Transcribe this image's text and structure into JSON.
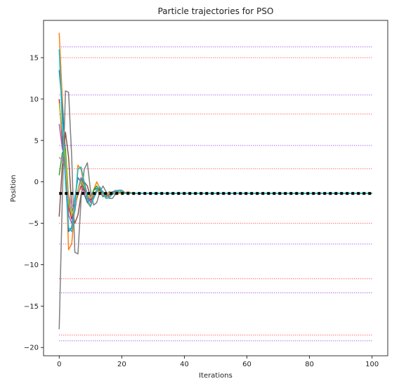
{
  "chart_data": {
    "type": "line",
    "title": "Particle trajectories for PSO",
    "xlabel": "Iterations",
    "ylabel": "Position",
    "xlim": [
      -5,
      105
    ],
    "ylim": [
      -21,
      19.5
    ],
    "xticks": [
      0,
      20,
      40,
      60,
      80,
      100
    ],
    "yticks": [
      -20,
      -15,
      -10,
      -5,
      0,
      5,
      10,
      15
    ],
    "grid": false,
    "horizontal_lines": [
      {
        "y": 16.3,
        "color": "#8b2be2"
      },
      {
        "y": 15.0,
        "color": "#ff3030"
      },
      {
        "y": 10.5,
        "color": "#8b2be2"
      },
      {
        "y": 8.2,
        "color": "#ff3030"
      },
      {
        "y": 4.4,
        "color": "#8b2be2"
      },
      {
        "y": 1.6,
        "color": "#ff3030"
      },
      {
        "y": -5.0,
        "color": "#ff3030"
      },
      {
        "y": -7.5,
        "color": "#8b2be2"
      },
      {
        "y": -11.7,
        "color": "#ff3030"
      },
      {
        "y": -13.4,
        "color": "#8b2be2"
      },
      {
        "y": -18.5,
        "color": "#ff3030"
      },
      {
        "y": -19.2,
        "color": "#8b2be2"
      }
    ],
    "reference_line": {
      "y": -1.4,
      "color": "#000000",
      "style": "dotted"
    },
    "series": [
      {
        "color": "#ff7f0e",
        "values": [
          [
            0,
            18.0
          ],
          [
            1,
            10.0
          ],
          [
            2,
            3.0
          ],
          [
            3,
            -8.2
          ],
          [
            4,
            -7.5
          ],
          [
            5,
            -3.0
          ],
          [
            6,
            2.0
          ],
          [
            7,
            1.5
          ],
          [
            8,
            -0.5
          ],
          [
            9,
            -2.5
          ],
          [
            10,
            -3.0
          ],
          [
            11,
            -1.0
          ],
          [
            12,
            0.0
          ],
          [
            13,
            -0.8
          ],
          [
            14,
            -1.5
          ],
          [
            15,
            -2.0
          ],
          [
            16,
            -1.8
          ],
          [
            17,
            -1.4
          ],
          [
            18,
            -1.0
          ],
          [
            19,
            -1.2
          ],
          [
            20,
            -1.5
          ],
          [
            21,
            -1.3
          ],
          [
            22,
            -1.2
          ],
          [
            24,
            -1.4
          ],
          [
            27,
            -1.4
          ],
          [
            100,
            -1.4
          ]
        ]
      },
      {
        "color": "#1f77b4",
        "values": [
          [
            0,
            13.5
          ],
          [
            1,
            9.0
          ],
          [
            2,
            3.5
          ],
          [
            3,
            -6.0
          ],
          [
            4,
            -5.5
          ],
          [
            5,
            -2.0
          ],
          [
            6,
            0.5
          ],
          [
            7,
            0.0
          ],
          [
            8,
            -1.5
          ],
          [
            9,
            -2.5
          ],
          [
            10,
            -2.0
          ],
          [
            11,
            -1.0
          ],
          [
            12,
            -0.8
          ],
          [
            13,
            -1.0
          ],
          [
            14,
            -1.5
          ],
          [
            15,
            -1.8
          ],
          [
            16,
            -1.5
          ],
          [
            17,
            -1.2
          ],
          [
            18,
            -1.1
          ],
          [
            19,
            -1.3
          ],
          [
            20,
            -1.4
          ],
          [
            22,
            -1.4
          ],
          [
            100,
            -1.4
          ]
        ]
      },
      {
        "color": "#2ca02c",
        "values": [
          [
            0,
            0.8
          ],
          [
            1,
            3.5
          ],
          [
            2,
            4.0
          ],
          [
            3,
            -2.0
          ],
          [
            4,
            -4.0
          ],
          [
            5,
            -3.5
          ],
          [
            6,
            -1.0
          ],
          [
            7,
            0.5
          ],
          [
            8,
            -0.8
          ],
          [
            9,
            -2.0
          ],
          [
            10,
            -2.2
          ],
          [
            11,
            -1.0
          ],
          [
            12,
            -0.5
          ],
          [
            13,
            -1.2
          ],
          [
            14,
            -1.8
          ],
          [
            15,
            -1.6
          ],
          [
            16,
            -1.2
          ],
          [
            17,
            -1.3
          ],
          [
            18,
            -1.5
          ],
          [
            19,
            -1.3
          ],
          [
            20,
            -1.2
          ],
          [
            22,
            -1.4
          ],
          [
            100,
            -1.4
          ]
        ]
      },
      {
        "color": "#d62728",
        "values": [
          [
            0,
            10.0
          ],
          [
            1,
            5.0
          ],
          [
            2,
            2.0
          ],
          [
            3,
            -3.0
          ],
          [
            4,
            -4.5
          ],
          [
            5,
            -3.0
          ],
          [
            6,
            -1.5
          ],
          [
            7,
            -0.5
          ],
          [
            8,
            -1.0
          ],
          [
            9,
            -1.8
          ],
          [
            10,
            -2.2
          ],
          [
            11,
            -1.5
          ],
          [
            12,
            -1.0
          ],
          [
            13,
            -1.2
          ],
          [
            14,
            -1.6
          ],
          [
            15,
            -1.5
          ],
          [
            16,
            -1.3
          ],
          [
            17,
            -1.4
          ],
          [
            18,
            -1.5
          ],
          [
            20,
            -1.3
          ],
          [
            22,
            -1.4
          ],
          [
            100,
            -1.4
          ]
        ]
      },
      {
        "color": "#9467bd",
        "values": [
          [
            0,
            7.0
          ],
          [
            1,
            4.0
          ],
          [
            2,
            3.0
          ],
          [
            3,
            -4.0
          ],
          [
            4,
            -5.0
          ],
          [
            5,
            -3.5
          ],
          [
            6,
            -1.0
          ],
          [
            7,
            0.5
          ],
          [
            8,
            0.0
          ],
          [
            9,
            -1.5
          ],
          [
            10,
            -2.5
          ],
          [
            11,
            -1.8
          ],
          [
            12,
            -1.0
          ],
          [
            13,
            -1.2
          ],
          [
            14,
            -1.7
          ],
          [
            15,
            -1.8
          ],
          [
            16,
            -1.5
          ],
          [
            17,
            -1.2
          ],
          [
            18,
            -1.2
          ],
          [
            20,
            -1.4
          ],
          [
            22,
            -1.4
          ],
          [
            100,
            -1.4
          ]
        ]
      },
      {
        "color": "#8c564b",
        "values": [
          [
            0,
            -4.2
          ],
          [
            1,
            2.0
          ],
          [
            2,
            6.0
          ],
          [
            3,
            3.0
          ],
          [
            4,
            -3.0
          ],
          [
            5,
            -5.0
          ],
          [
            6,
            -4.0
          ],
          [
            7,
            -1.5
          ],
          [
            8,
            0.0
          ],
          [
            9,
            -0.5
          ],
          [
            10,
            -1.8
          ],
          [
            11,
            -2.0
          ],
          [
            12,
            -1.2
          ],
          [
            13,
            -0.8
          ],
          [
            14,
            -1.2
          ],
          [
            15,
            -1.7
          ],
          [
            16,
            -1.6
          ],
          [
            17,
            -1.3
          ],
          [
            18,
            -1.2
          ],
          [
            20,
            -1.4
          ],
          [
            22,
            -1.4
          ],
          [
            100,
            -1.4
          ]
        ]
      },
      {
        "color": "#e377c2",
        "values": [
          [
            0,
            3.0
          ],
          [
            1,
            2.5
          ],
          [
            2,
            1.5
          ],
          [
            3,
            -1.5
          ],
          [
            4,
            -3.0
          ],
          [
            5,
            -2.5
          ],
          [
            6,
            -1.2
          ],
          [
            7,
            -0.8
          ],
          [
            8,
            -1.2
          ],
          [
            9,
            -1.8
          ],
          [
            10,
            -1.9
          ],
          [
            11,
            -1.4
          ],
          [
            12,
            -1.1
          ],
          [
            13,
            -1.3
          ],
          [
            14,
            -1.6
          ],
          [
            15,
            -1.5
          ],
          [
            16,
            -1.3
          ],
          [
            18,
            -1.4
          ],
          [
            100,
            -1.4
          ]
        ]
      },
      {
        "color": "#7f7f7f",
        "values": [
          [
            0,
            -17.8
          ],
          [
            1,
            -2.0
          ],
          [
            2,
            11.0
          ],
          [
            3,
            10.8
          ],
          [
            4,
            3.0
          ],
          [
            5,
            -8.5
          ],
          [
            6,
            -8.7
          ],
          [
            7,
            -2.0
          ],
          [
            8,
            1.5
          ],
          [
            9,
            2.3
          ],
          [
            10,
            -1.0
          ],
          [
            11,
            -2.8
          ],
          [
            12,
            -2.5
          ],
          [
            13,
            -1.2
          ],
          [
            14,
            -0.5
          ],
          [
            15,
            -1.2
          ],
          [
            16,
            -2.0
          ],
          [
            17,
            -2.0
          ],
          [
            18,
            -1.5
          ],
          [
            19,
            -1.0
          ],
          [
            20,
            -1.0
          ],
          [
            21,
            -1.3
          ],
          [
            22,
            -1.4
          ],
          [
            100,
            -1.4
          ]
        ]
      },
      {
        "color": "#bcbd22",
        "values": [
          [
            0,
            9.5
          ],
          [
            1,
            6.0
          ],
          [
            2,
            3.0
          ],
          [
            3,
            -2.5
          ],
          [
            4,
            -4.0
          ],
          [
            5,
            -3.0
          ],
          [
            6,
            -1.0
          ],
          [
            7,
            0.0
          ],
          [
            8,
            -0.5
          ],
          [
            9,
            -1.5
          ],
          [
            10,
            -2.0
          ],
          [
            11,
            -1.5
          ],
          [
            12,
            -1.0
          ],
          [
            13,
            -1.2
          ],
          [
            14,
            -1.5
          ],
          [
            15,
            -1.6
          ],
          [
            16,
            -1.4
          ],
          [
            18,
            -1.3
          ],
          [
            20,
            -1.4
          ],
          [
            100,
            -1.4
          ]
        ]
      },
      {
        "color": "#17becf",
        "values": [
          [
            0,
            16.0
          ],
          [
            1,
            7.0
          ],
          [
            2,
            0.0
          ],
          [
            3,
            -5.5
          ],
          [
            4,
            -6.0
          ],
          [
            5,
            -3.0
          ],
          [
            6,
            1.5
          ],
          [
            7,
            1.8
          ],
          [
            8,
            0.0
          ],
          [
            9,
            -2.0
          ],
          [
            10,
            -3.0
          ],
          [
            11,
            -2.0
          ],
          [
            12,
            -1.0
          ],
          [
            13,
            -0.6
          ],
          [
            14,
            -1.3
          ],
          [
            15,
            -2.0
          ],
          [
            16,
            -1.9
          ],
          [
            17,
            -1.5
          ],
          [
            18,
            -1.1
          ],
          [
            19,
            -1.0
          ],
          [
            20,
            -1.2
          ],
          [
            21,
            -1.4
          ],
          [
            22,
            -1.3
          ],
          [
            24,
            -1.4
          ],
          [
            100,
            -1.4
          ]
        ]
      }
    ]
  }
}
